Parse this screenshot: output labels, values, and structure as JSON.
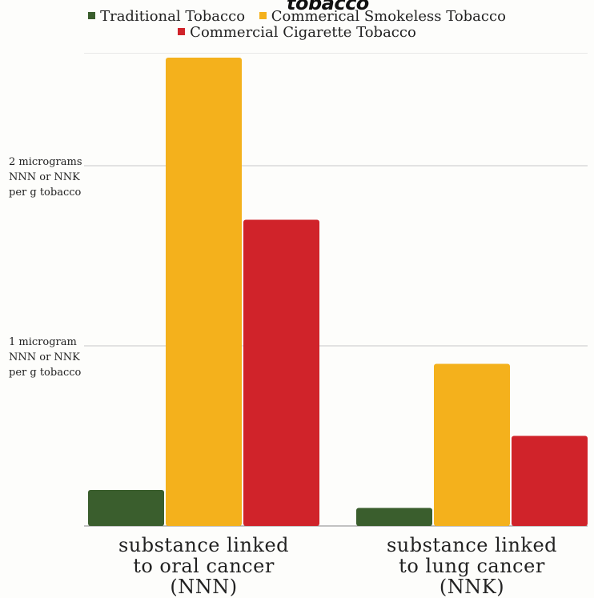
{
  "chart_data": {
    "type": "bar",
    "title_fragment": "tobacco",
    "categories": [
      "substance linked\nto oral cancer\n(NNN)",
      "substance linked\nto lung cancer\n(NNK)"
    ],
    "series": [
      {
        "name": "Traditional Tobacco",
        "color": "#3a5e2d",
        "values": [
          0.2,
          0.1
        ]
      },
      {
        "name": "Commerical Smokeless Tobacco",
        "color": "#f4b11c",
        "values": [
          2.6,
          0.9
        ]
      },
      {
        "name": "Commercial Cigarette Tobacco",
        "color": "#d0232a",
        "values": [
          1.7,
          0.5
        ]
      }
    ],
    "y_ticks": [
      {
        "value": 1,
        "label": "1 microgram\nNNN or NNK\nper g tobacco"
      },
      {
        "value": 2,
        "label": "2 micrograms\nNNN or NNK\nper g tobacco"
      }
    ],
    "ylim": [
      0,
      2.6
    ],
    "grid": true,
    "legend_position": "top"
  }
}
